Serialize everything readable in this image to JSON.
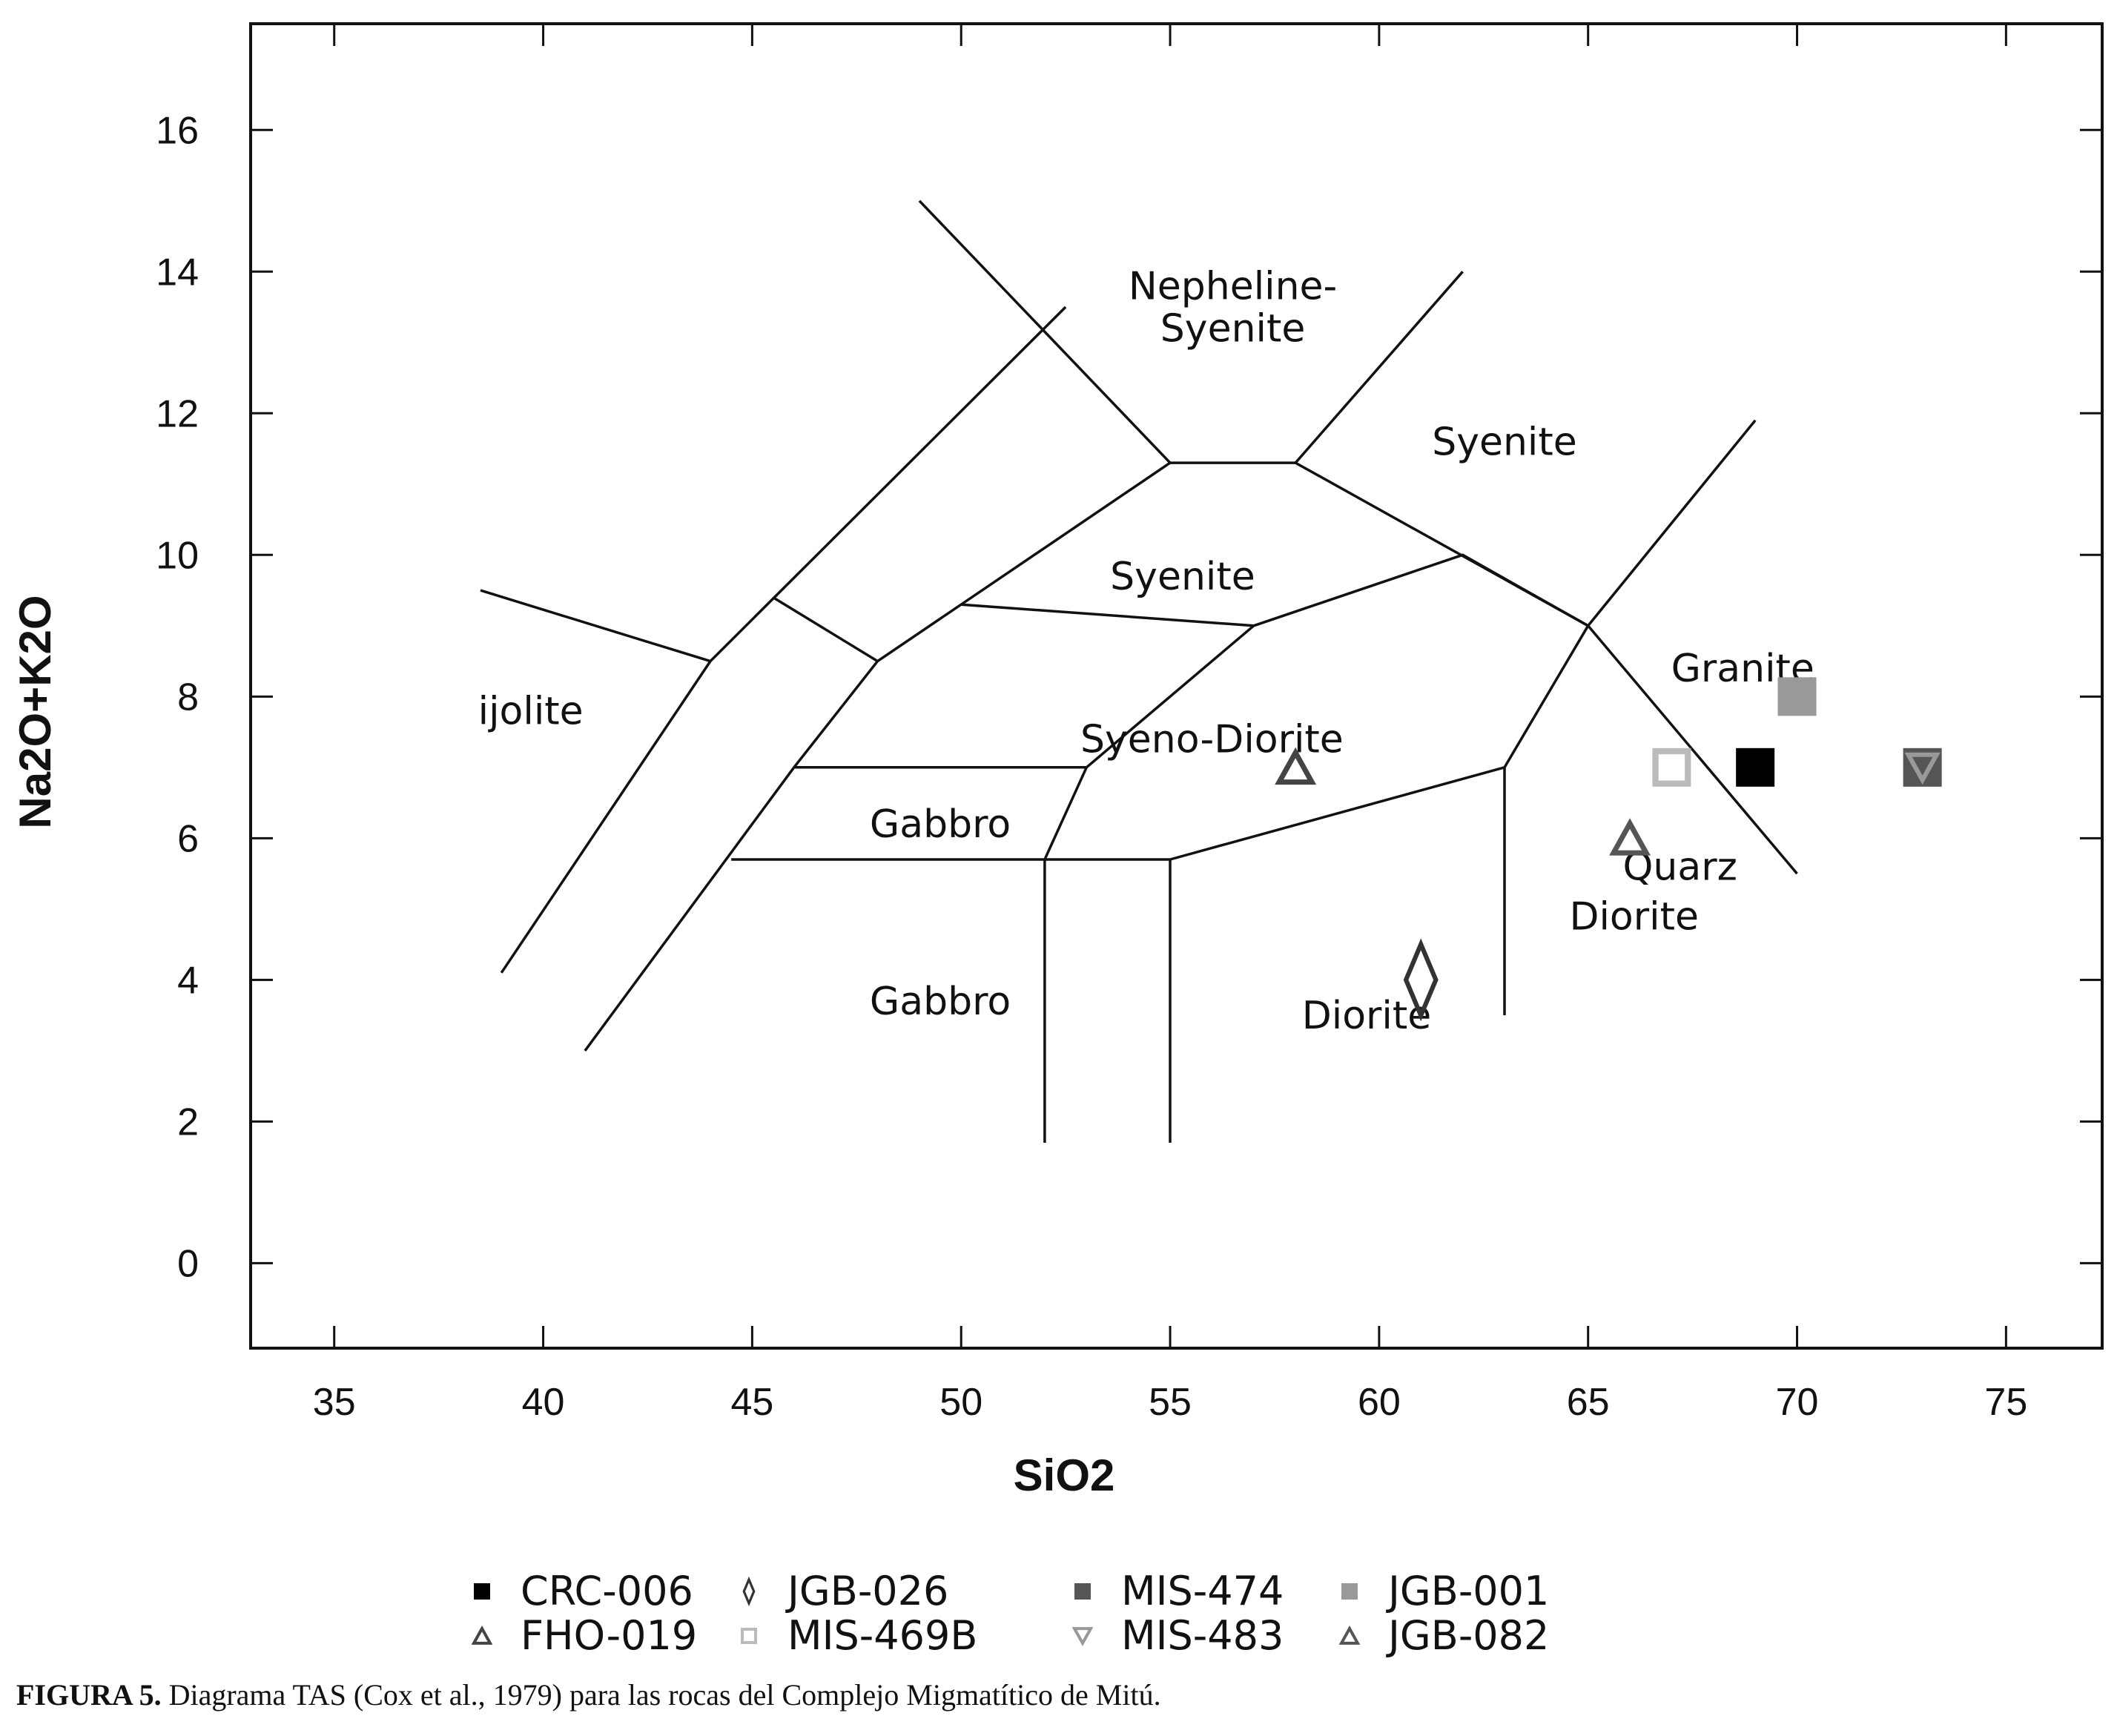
{
  "chart_data": {
    "type": "scatter",
    "title": "",
    "xlabel": "SiO2",
    "ylabel": "Na2O+K2O",
    "xlim": [
      33,
      77.3
    ],
    "ylim": [
      -1.2,
      17.5
    ],
    "x_ticks": [
      "35",
      "40",
      "45",
      "50",
      "55",
      "60",
      "65",
      "70",
      "75"
    ],
    "y_ticks": [
      "0",
      "2",
      "4",
      "6",
      "8",
      "10",
      "12",
      "14",
      "16"
    ],
    "grid": false,
    "legend_position": "bottom",
    "field_boundaries": [
      [
        [
          39,
          4.1
        ],
        [
          44,
          8.5
        ],
        [
          52.5,
          13.5
        ]
      ],
      [
        [
          38.5,
          9.5
        ],
        [
          44,
          8.5
        ]
      ],
      [
        [
          41,
          3
        ],
        [
          46,
          7
        ],
        [
          48,
          8.5
        ],
        [
          55,
          11.3
        ],
        [
          58,
          11.3
        ],
        [
          65,
          9
        ],
        [
          70,
          5.5
        ]
      ],
      [
        [
          45.5,
          9.4
        ],
        [
          48,
          8.5
        ]
      ],
      [
        [
          49,
          15
        ],
        [
          55,
          11.3
        ]
      ],
      [
        [
          58,
          11.3
        ],
        [
          62,
          14
        ]
      ],
      [
        [
          50,
          9.3
        ],
        [
          57,
          9
        ]
      ],
      [
        [
          53,
          7
        ],
        [
          57,
          9
        ],
        [
          62,
          10
        ],
        [
          65,
          9
        ]
      ],
      [
        [
          46,
          7
        ],
        [
          53,
          7
        ]
      ],
      [
        [
          44.5,
          5.7
        ],
        [
          55,
          5.7
        ],
        [
          63,
          7
        ],
        [
          65,
          9
        ],
        [
          69,
          11.9
        ]
      ],
      [
        [
          52,
          5.7
        ],
        [
          53,
          7
        ]
      ],
      [
        [
          52,
          1.7
        ],
        [
          52,
          5.7
        ]
      ],
      [
        [
          55,
          1.7
        ],
        [
          55,
          5.7
        ]
      ],
      [
        [
          63,
          3.5
        ],
        [
          63,
          7
        ]
      ]
    ],
    "region_labels": [
      {
        "text": "Nepheline-",
        "x": 56.5,
        "y": 13.8
      },
      {
        "text": "Syenite",
        "x": 56.5,
        "y": 13.2
      },
      {
        "text": "Syenite",
        "x": 63,
        "y": 11.6
      },
      {
        "text": "Syenite",
        "x": 55.3,
        "y": 9.7
      },
      {
        "text": "Granite",
        "x": 68.7,
        "y": 8.4
      },
      {
        "text": "ijolite",
        "x": 39.7,
        "y": 7.8
      },
      {
        "text": "Syeno-Diorite",
        "x": 56,
        "y": 7.4
      },
      {
        "text": "Gabbro",
        "x": 49.5,
        "y": 6.2
      },
      {
        "text": "Gabbro",
        "x": 49.5,
        "y": 3.7
      },
      {
        "text": "Quarz",
        "x": 67.2,
        "y": 5.6
      },
      {
        "text": "Diorite",
        "x": 66.1,
        "y": 4.9
      },
      {
        "text": "Diorite",
        "x": 59.7,
        "y": 3.5
      }
    ],
    "series": [
      {
        "name": "CRC-006",
        "marker": "square-filled",
        "color": "#000000",
        "x": [
          69
        ],
        "y": [
          7
        ]
      },
      {
        "name": "FHO-019",
        "marker": "triangle-up-open",
        "color": "#444444",
        "x": [
          58
        ],
        "y": [
          7
        ]
      },
      {
        "name": "JGB-026",
        "marker": "diamond-open",
        "color": "#333333",
        "x": [
          61
        ],
        "y": [
          4
        ]
      },
      {
        "name": "MIS-469B",
        "marker": "square-open",
        "color": "#bbbbbb",
        "x": [
          67
        ],
        "y": [
          7
        ]
      },
      {
        "name": "MIS-474",
        "marker": "square-filled",
        "color": "#555555",
        "x": [
          73
        ],
        "y": [
          7
        ]
      },
      {
        "name": "MIS-483",
        "marker": "triangle-down-open",
        "color": "#999999",
        "x": [
          73
        ],
        "y": [
          7
        ]
      },
      {
        "name": "JGB-001",
        "marker": "square-filled",
        "color": "#999999",
        "x": [
          70
        ],
        "y": [
          8
        ]
      },
      {
        "name": "JGB-082",
        "marker": "triangle-up-open",
        "color": "#555555",
        "x": [
          66
        ],
        "y": [
          6
        ]
      }
    ]
  },
  "caption": {
    "label": "FIGURA 5.",
    "text": " Diagrama TAS (Cox et al., 1979) para las rocas del Complejo Migmatítico de Mitú."
  }
}
